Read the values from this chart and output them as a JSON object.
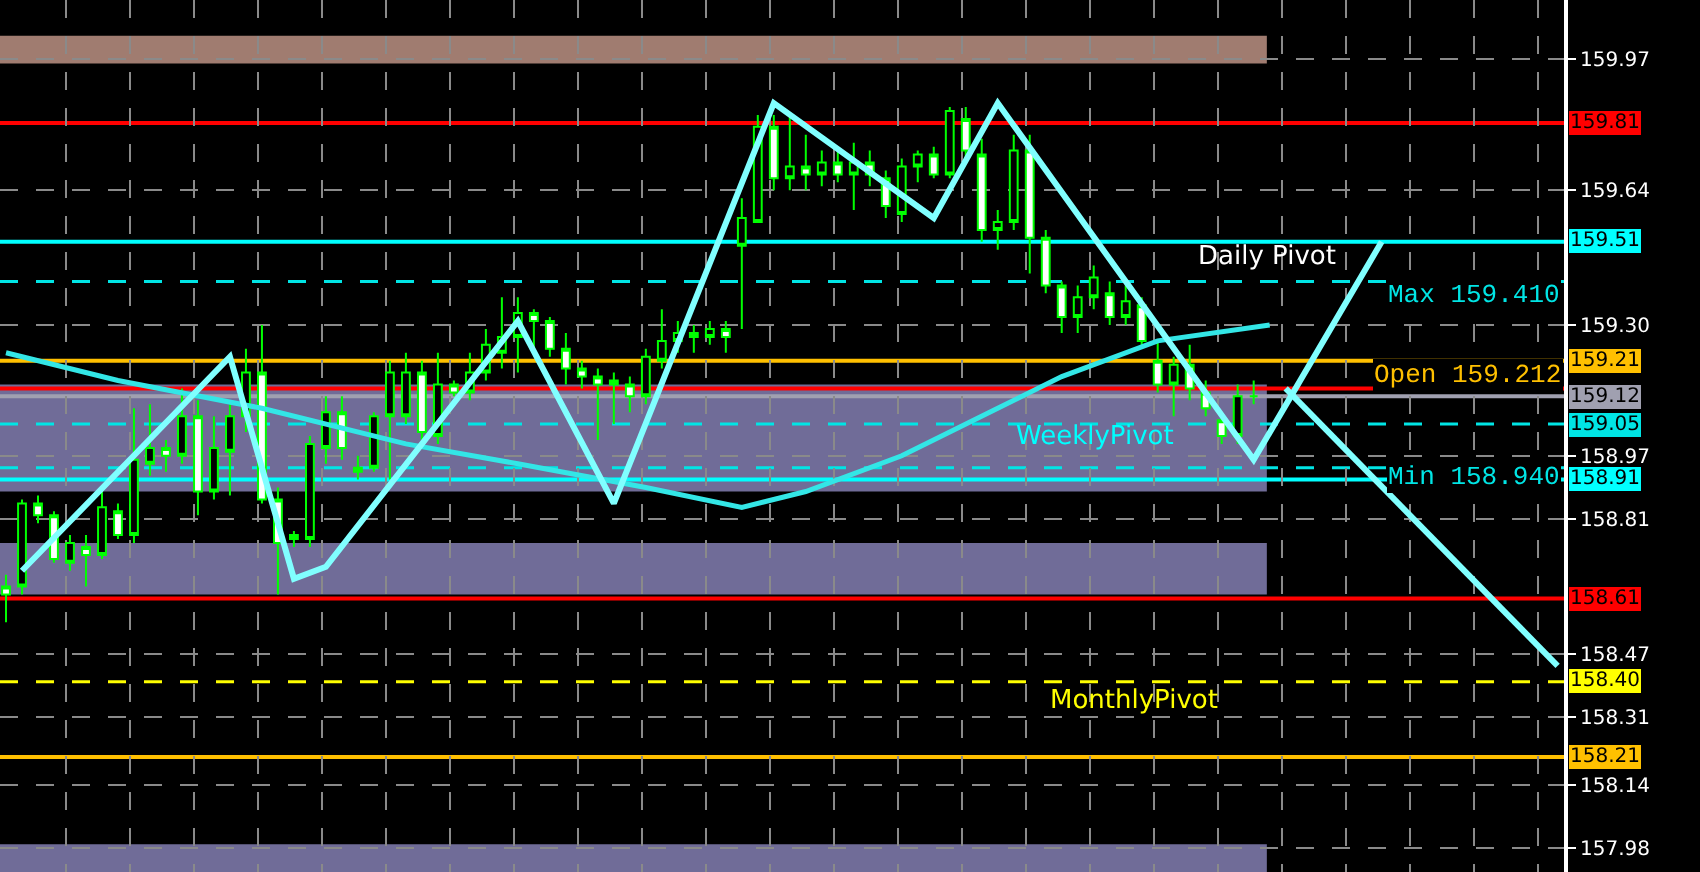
{
  "chart_data": {
    "type": "candlestick",
    "color": "#00ff00",
    "categories": [
      null,
      null,
      null,
      null,
      null,
      null,
      null,
      null,
      null,
      null,
      null,
      null,
      null,
      null,
      null,
      null,
      null,
      null,
      null,
      null,
      null,
      null,
      null,
      null,
      null,
      null,
      null,
      null,
      null,
      null,
      null,
      null,
      null,
      null,
      null,
      null,
      null,
      null,
      null,
      null,
      null,
      null,
      null,
      null,
      null,
      null,
      null,
      null,
      null,
      null,
      null,
      null,
      null,
      null,
      null,
      null,
      null,
      null,
      null,
      null,
      null,
      null,
      null,
      null,
      null,
      null,
      null,
      null,
      null,
      null,
      null,
      null,
      null,
      null,
      null,
      null,
      null,
      null,
      null,
      null,
      null,
      null,
      null,
      null,
      null,
      null,
      null,
      null,
      null,
      null,
      null,
      null,
      null,
      null,
      null,
      null,
      null,
      null
    ],
    "ohlc": [
      [
        158.62,
        158.67,
        158.55,
        158.64
      ],
      [
        158.85,
        158.86,
        158.62,
        158.64
      ],
      [
        158.82,
        158.87,
        158.8,
        158.85
      ],
      [
        158.71,
        158.83,
        158.7,
        158.82
      ],
      [
        158.75,
        158.77,
        158.68,
        158.7
      ],
      [
        158.72,
        158.77,
        158.64,
        158.74
      ],
      [
        158.84,
        158.88,
        158.71,
        158.72
      ],
      [
        158.77,
        158.85,
        158.76,
        158.83
      ],
      [
        158.96,
        159.09,
        158.75,
        158.77
      ],
      [
        158.99,
        159.1,
        158.92,
        158.95
      ],
      [
        158.97,
        159.01,
        158.93,
        158.99
      ],
      [
        159.07,
        159.14,
        158.95,
        158.97
      ],
      [
        158.88,
        159.11,
        158.82,
        159.07
      ],
      [
        158.99,
        159.07,
        158.86,
        158.88
      ],
      [
        159.07,
        159.11,
        158.87,
        158.98
      ],
      [
        159.18,
        159.24,
        159.03,
        159.07
      ],
      [
        158.86,
        159.3,
        158.85,
        159.18
      ],
      [
        158.75,
        158.89,
        158.62,
        158.86
      ],
      [
        158.76,
        158.78,
        158.74,
        158.77
      ],
      [
        159.0,
        159.02,
        158.74,
        158.76
      ],
      [
        159.08,
        159.12,
        158.95,
        158.99
      ],
      [
        158.99,
        159.12,
        158.96,
        159.08
      ],
      [
        158.94,
        158.97,
        158.91,
        158.93
      ],
      [
        159.07,
        159.08,
        158.93,
        158.94
      ],
      [
        159.18,
        159.21,
        158.91,
        159.07
      ],
      [
        159.18,
        159.23,
        159.05,
        159.07
      ],
      [
        159.03,
        159.21,
        159.01,
        159.18
      ],
      [
        159.15,
        159.23,
        159.0,
        159.02
      ],
      [
        159.13,
        159.16,
        159.12,
        159.15
      ],
      [
        159.18,
        159.23,
        159.11,
        159.13
      ],
      [
        159.25,
        159.29,
        159.16,
        159.18
      ],
      [
        159.27,
        159.37,
        159.19,
        159.23
      ],
      [
        159.33,
        159.37,
        159.18,
        159.27
      ],
      [
        159.31,
        159.34,
        159.24,
        159.33
      ],
      [
        159.24,
        159.32,
        159.22,
        159.31
      ],
      [
        159.19,
        159.28,
        159.15,
        159.24
      ],
      [
        159.17,
        159.21,
        159.14,
        159.19
      ],
      [
        159.15,
        159.19,
        159.01,
        159.17
      ],
      [
        159.16,
        159.18,
        159.05,
        159.15
      ],
      [
        159.12,
        159.17,
        159.08,
        159.15
      ],
      [
        159.22,
        159.24,
        159.1,
        159.12
      ],
      [
        159.26,
        159.34,
        159.19,
        159.21
      ],
      [
        159.28,
        159.31,
        159.23,
        159.26
      ],
      [
        159.27,
        159.3,
        159.23,
        159.28
      ],
      [
        159.29,
        159.31,
        159.25,
        159.27
      ],
      [
        159.27,
        159.31,
        159.23,
        159.29
      ],
      [
        159.57,
        159.62,
        159.29,
        159.5
      ],
      [
        159.8,
        159.83,
        159.56,
        159.56
      ],
      [
        159.67,
        159.83,
        159.64,
        159.8
      ],
      [
        159.7,
        159.83,
        159.64,
        159.67
      ],
      [
        159.68,
        159.78,
        159.64,
        159.7
      ],
      [
        159.71,
        159.74,
        159.65,
        159.68
      ],
      [
        159.68,
        159.75,
        159.66,
        159.71
      ],
      [
        159.71,
        159.76,
        159.59,
        159.68
      ],
      [
        159.68,
        159.74,
        159.65,
        159.71
      ],
      [
        159.6,
        159.69,
        159.57,
        159.67
      ],
      [
        159.7,
        159.72,
        159.56,
        159.58
      ],
      [
        159.73,
        159.74,
        159.66,
        159.7
      ],
      [
        159.68,
        159.75,
        159.67,
        159.73
      ],
      [
        159.84,
        159.85,
        159.67,
        159.68
      ],
      [
        159.74,
        159.85,
        159.72,
        159.82
      ],
      [
        159.54,
        159.77,
        159.51,
        159.73
      ],
      [
        159.56,
        159.59,
        159.49,
        159.54
      ],
      [
        159.74,
        159.78,
        159.54,
        159.56
      ],
      [
        159.52,
        159.78,
        159.43,
        159.74
      ],
      [
        159.4,
        159.54,
        159.38,
        159.52
      ],
      [
        159.32,
        159.41,
        159.28,
        159.4
      ],
      [
        159.37,
        159.4,
        159.28,
        159.32
      ],
      [
        159.42,
        159.45,
        159.34,
        159.37
      ],
      [
        159.32,
        159.41,
        159.3,
        159.38
      ],
      [
        159.36,
        159.4,
        159.3,
        159.32
      ],
      [
        159.26,
        159.37,
        159.24,
        159.35
      ],
      [
        159.15,
        159.26,
        159.13,
        159.21
      ],
      [
        159.2,
        159.22,
        159.07,
        159.15
      ],
      [
        159.14,
        159.25,
        159.11,
        159.2
      ],
      [
        159.09,
        159.16,
        159.07,
        159.13
      ],
      [
        159.02,
        159.08,
        159.0,
        159.06
      ],
      [
        159.12,
        159.15,
        159.0,
        159.02
      ],
      [
        159.12,
        159.16,
        159.1,
        159.12
      ],
      null,
      null,
      null,
      null,
      null,
      null,
      null,
      null,
      null,
      null,
      null,
      null,
      null,
      null,
      null,
      null,
      null,
      null,
      null
    ],
    "series": [
      {
        "type": "line",
        "color": "#33e6e6",
        "values": [
          159.23,
          null,
          null,
          null,
          null,
          null,
          null,
          159.16,
          null,
          null,
          null,
          null,
          null,
          null,
          null,
          null,
          159.09,
          null,
          null,
          null,
          null,
          null,
          null,
          null,
          null,
          159.0,
          null,
          null,
          null,
          null,
          null,
          null,
          158.95,
          null,
          null,
          null,
          null,
          null,
          null,
          null,
          158.89,
          null,
          null,
          null,
          null,
          null,
          158.84,
          null,
          null,
          null,
          158.88,
          null,
          null,
          null,
          null,
          null,
          158.97,
          null,
          null,
          null,
          null,
          null,
          159.09,
          null,
          null,
          null,
          159.17,
          null,
          null,
          null,
          null,
          null,
          159.26,
          null,
          null,
          null,
          null,
          null,
          null,
          159.3,
          null,
          null,
          null,
          null,
          null,
          null,
          null,
          null,
          null,
          null,
          null,
          null,
          null,
          null,
          null,
          null,
          null,
          null
        ]
      },
      {
        "type": "line",
        "color": "#80ffff",
        "values": [
          null,
          158.68,
          null,
          null,
          null,
          null,
          null,
          null,
          null,
          null,
          null,
          null,
          null,
          null,
          159.22,
          null,
          null,
          null,
          158.66,
          null,
          158.69,
          null,
          null,
          null,
          null,
          null,
          null,
          null,
          null,
          null,
          null,
          null,
          159.31,
          null,
          null,
          null,
          null,
          null,
          158.85,
          null,
          null,
          null,
          null,
          null,
          null,
          null,
          null,
          null,
          159.86,
          null,
          null,
          null,
          null,
          null,
          null,
          null,
          null,
          null,
          159.57,
          null,
          null,
          null,
          159.86,
          null,
          null,
          null,
          null,
          null,
          null,
          null,
          null,
          null,
          null,
          null,
          null,
          null,
          null,
          null,
          158.96,
          null,
          null,
          null,
          null,
          null,
          null,
          null,
          159.51,
          null,
          null,
          null,
          null,
          null,
          null,
          null,
          null,
          null,
          null,
          null
        ]
      },
      {
        "type": "line",
        "color": "#80ffff",
        "values": [
          null,
          null,
          null,
          null,
          null,
          null,
          null,
          null,
          null,
          null,
          null,
          null,
          null,
          null,
          null,
          null,
          null,
          null,
          null,
          null,
          null,
          null,
          null,
          null,
          null,
          null,
          null,
          null,
          null,
          null,
          null,
          null,
          null,
          null,
          null,
          null,
          null,
          null,
          null,
          null,
          null,
          null,
          null,
          null,
          null,
          null,
          null,
          null,
          null,
          null,
          null,
          null,
          null,
          null,
          null,
          null,
          null,
          null,
          null,
          null,
          null,
          null,
          null,
          null,
          null,
          null,
          null,
          null,
          null,
          null,
          null,
          null,
          null,
          null,
          null,
          null,
          null,
          null,
          null,
          null,
          159.14,
          null,
          null,
          null,
          null,
          null,
          null,
          null,
          null,
          null,
          null,
          null,
          null,
          null,
          null,
          null,
          null,
          158.44
        ]
      }
    ],
    "ylim": [
      157.92,
      160.12
    ],
    "yticks": [
      159.97,
      159.64,
      {
        "value": 159.3,
        "label": "159.30"
      },
      158.97,
      158.81,
      158.47,
      158.31,
      158.14,
      157.98
    ],
    "tick_labels": "y",
    "grid": true,
    "bands": [
      {
        "axis": "y",
        "from": 159.96,
        "to": 160.03,
        "color": "#a07c70"
      },
      {
        "axis": "y",
        "from": 158.88,
        "to": 159.15,
        "color": "#706c98"
      },
      {
        "axis": "y",
        "from": 158.62,
        "to": 158.75,
        "color": "#706c98"
      },
      {
        "axis": "y",
        "from": 157.92,
        "to": 157.99,
        "color": "#706c98"
      }
    ],
    "ref_lines": [
      {
        "axis": "y",
        "value": 159.81,
        "label": "159.81",
        "color": "#ff0000",
        "line_style": "solid"
      },
      {
        "axis": "y",
        "value": 159.51,
        "label": "159.51",
        "color": "#00ffff",
        "line_style": "solid"
      },
      {
        "axis": "y",
        "value": 159.41,
        "color": "#00e5e5",
        "line_style": "dashed"
      },
      {
        "axis": "y",
        "value": 159.21,
        "label": "159.21",
        "color": "#ffc000",
        "line_style": "solid"
      },
      {
        "axis": "y",
        "value": 159.14,
        "color": "#ff0000",
        "line_style": "solid"
      },
      {
        "axis": "y",
        "value": 159.12,
        "label": "159.12",
        "color": "#a0a0b0",
        "line_style": "solid"
      },
      {
        "axis": "y",
        "value": 159.05,
        "label": "159.05",
        "color": "#00e5e5",
        "line_style": "dashed"
      },
      {
        "axis": "y",
        "value": 158.94,
        "color": "#00e5e5",
        "line_style": "dashed"
      },
      {
        "axis": "y",
        "value": 158.91,
        "label": "158.91",
        "color": "#00ffff",
        "line_style": "solid"
      },
      {
        "axis": "y",
        "value": 158.61,
        "label": "158.61",
        "color": "#ff0000",
        "line_style": "solid"
      },
      {
        "axis": "y",
        "value": 158.4,
        "label": "158.40",
        "color": "#ffff00",
        "line_style": "dashed"
      },
      {
        "axis": "y",
        "value": 158.21,
        "label": "158.21",
        "color": "#ffc000",
        "line_style": "solid"
      }
    ],
    "annotations": [
      "Daily Pivot",
      "WeeklyPivot",
      "MonthlyPivot",
      "Max 159.410",
      "Open 159.212",
      "Min 158.940"
    ]
  }
}
